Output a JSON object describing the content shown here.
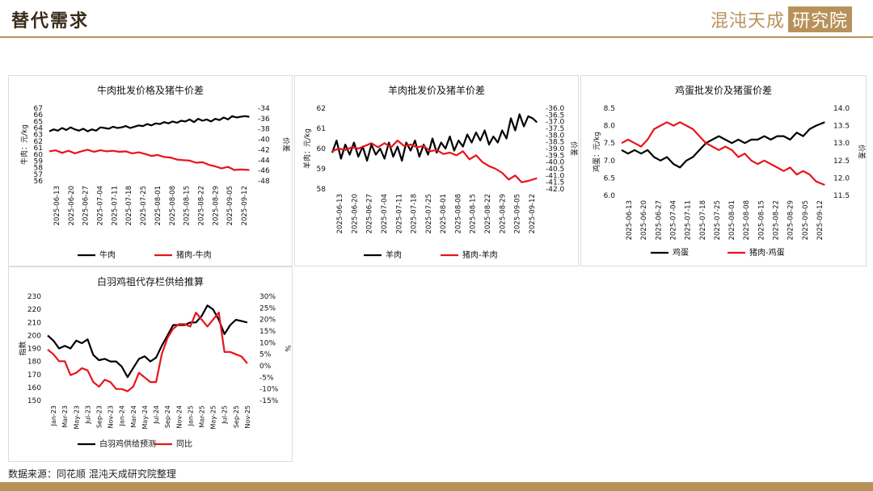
{
  "header": {
    "title": "替代需求",
    "logo_text": "混沌天成",
    "logo_box": "研究院"
  },
  "footer": {
    "source": "数据来源：同花顺 混沌天成研究院整理"
  },
  "colors": {
    "black": "#000000",
    "red": "#e8141b",
    "gold": "#b8915a"
  },
  "chart_data": [
    {
      "type": "line",
      "title": "牛肉批发价格及猪牛价差",
      "ylabel": "牛肉：元/kg",
      "y2label": "价差",
      "ylim": [
        56,
        67
      ],
      "yticks": [
        56,
        57,
        58,
        59,
        60,
        61,
        62,
        63,
        64,
        65,
        66,
        67
      ],
      "y2lim": [
        -48,
        -34
      ],
      "y2ticks": [
        -34,
        -36,
        -38,
        -40,
        -42,
        -44,
        -46,
        -48
      ],
      "xlim": [
        0,
        95
      ],
      "x_tick_labels": [
        "2025-06-13",
        "2025-06-20",
        "2025-06-27",
        "2025-07-04",
        "2025-07-11",
        "2025-07-18",
        "2025-07-25",
        "2025-08-01",
        "2025-08-08",
        "2025-08-15",
        "2025-08-22",
        "2025-08-29",
        "2025-09-05",
        "2025-09-12"
      ],
      "series": [
        {
          "name": "牛肉",
          "color": "#000000",
          "axis": "left",
          "x": [
            0,
            2,
            4,
            6,
            8,
            10,
            12,
            14,
            16,
            18,
            20,
            22,
            24,
            26,
            28,
            30,
            32,
            34,
            36,
            38,
            40,
            42,
            44,
            46,
            48,
            50,
            52,
            54,
            56,
            58,
            60,
            62,
            64,
            66,
            68,
            70,
            72,
            74,
            76,
            78,
            80,
            82,
            84,
            86,
            88,
            90,
            92,
            94
          ],
          "values": [
            63.5,
            63.8,
            63.6,
            64.0,
            63.7,
            64.1,
            63.8,
            63.6,
            63.9,
            63.5,
            63.8,
            63.6,
            64.1,
            64.0,
            63.9,
            64.2,
            64.0,
            64.1,
            64.3,
            64.0,
            64.2,
            64.4,
            64.3,
            64.6,
            64.4,
            64.7,
            64.6,
            64.9,
            64.7,
            65.0,
            64.8,
            65.1,
            65.0,
            65.3,
            64.9,
            65.4,
            65.1,
            65.3,
            65.0,
            65.4,
            65.2,
            65.6,
            65.3,
            65.8,
            65.6,
            65.7,
            65.8,
            65.7
          ]
        },
        {
          "name": "猪肉-牛肉",
          "color": "#e8141b",
          "axis": "right",
          "x": [
            0,
            3,
            6,
            9,
            12,
            15,
            18,
            21,
            24,
            27,
            30,
            33,
            36,
            39,
            42,
            45,
            48,
            51,
            54,
            57,
            60,
            63,
            66,
            69,
            72,
            75,
            78,
            81,
            84,
            87,
            90,
            94
          ],
          "values": [
            -42.3,
            -42.1,
            -42.6,
            -42.2,
            -42.7,
            -42.3,
            -42.0,
            -42.4,
            -42.1,
            -42.3,
            -42.2,
            -42.4,
            -42.3,
            -42.7,
            -42.5,
            -42.8,
            -43.2,
            -43.0,
            -43.4,
            -43.5,
            -43.9,
            -44.0,
            -44.1,
            -44.5,
            -44.4,
            -44.9,
            -45.2,
            -45.6,
            -45.3,
            -45.9,
            -45.8,
            -45.9
          ]
        }
      ]
    },
    {
      "type": "line",
      "title": "羊肉批发价及猪羊价差",
      "ylabel": "羊肉：元/kg",
      "y2label": "价差",
      "ylim": [
        58,
        62
      ],
      "yticks": [
        58,
        59,
        60,
        61,
        62
      ],
      "y2lim": [
        -42,
        -36
      ],
      "y2ticks": [
        -36.0,
        -36.5,
        -37.0,
        -37.5,
        -38.0,
        -38.5,
        -39.0,
        -39.5,
        -40.0,
        -40.5,
        -41.0,
        -41.5,
        -42.0
      ],
      "xlim": [
        0,
        95
      ],
      "x_tick_labels": [
        "2025-06-13",
        "2025-06-20",
        "2025-06-27",
        "2025-07-04",
        "2025-07-11",
        "2025-07-18",
        "2025-07-25",
        "2025-08-01",
        "2025-08-08",
        "2025-08-15",
        "2025-08-22",
        "2025-08-29",
        "2025-09-05",
        "2025-09-12"
      ],
      "series": [
        {
          "name": "羊肉",
          "color": "#000000",
          "axis": "left",
          "x": [
            0,
            2,
            4,
            6,
            8,
            10,
            12,
            14,
            16,
            18,
            20,
            22,
            24,
            26,
            28,
            30,
            32,
            34,
            36,
            38,
            40,
            42,
            44,
            46,
            48,
            50,
            52,
            54,
            56,
            58,
            60,
            62,
            64,
            66,
            68,
            70,
            72,
            74,
            76,
            78,
            80,
            82,
            84,
            86,
            88,
            90,
            92,
            94
          ],
          "values": [
            59.8,
            60.4,
            59.5,
            60.2,
            59.7,
            60.3,
            59.6,
            60.1,
            59.4,
            60.2,
            59.7,
            60.0,
            59.5,
            60.3,
            59.6,
            60.1,
            59.4,
            60.3,
            59.9,
            60.4,
            59.6,
            60.2,
            59.7,
            60.5,
            59.8,
            60.3,
            60.0,
            60.6,
            59.9,
            60.4,
            60.1,
            60.7,
            60.3,
            60.8,
            60.4,
            60.9,
            60.2,
            60.6,
            60.3,
            60.9,
            60.5,
            61.5,
            60.9,
            61.7,
            61.1,
            61.6,
            61.5,
            61.3
          ]
        },
        {
          "name": "猪肉-羊肉",
          "color": "#e8141b",
          "axis": "right",
          "x": [
            0,
            3,
            6,
            9,
            12,
            15,
            18,
            21,
            24,
            27,
            30,
            33,
            36,
            39,
            42,
            45,
            48,
            51,
            54,
            57,
            60,
            63,
            66,
            69,
            72,
            75,
            78,
            81,
            84,
            87,
            90,
            94
          ],
          "values": [
            -39.2,
            -39.0,
            -39.1,
            -38.9,
            -39.0,
            -38.8,
            -38.6,
            -38.9,
            -38.6,
            -38.9,
            -38.4,
            -38.8,
            -38.7,
            -38.9,
            -38.8,
            -39.2,
            -39.1,
            -39.4,
            -39.3,
            -39.5,
            -39.2,
            -39.8,
            -39.5,
            -40.0,
            -40.3,
            -40.5,
            -40.8,
            -41.3,
            -41.0,
            -41.5,
            -41.4,
            -41.2
          ]
        }
      ]
    },
    {
      "type": "line",
      "title": "鸡蛋批发价及猪蛋价差",
      "ylabel": "鸡蛋：元/kg",
      "y2label": "价差",
      "ylim": [
        6.0,
        8.5
      ],
      "yticks": [
        6.0,
        6.5,
        7.0,
        7.5,
        8.0,
        8.5
      ],
      "y2lim": [
        11.5,
        14.0
      ],
      "y2ticks": [
        11.5,
        12.0,
        12.5,
        13.0,
        13.5,
        14.0
      ],
      "xlim": [
        0,
        95
      ],
      "x_tick_labels": [
        "2025-06-13",
        "2025-06-20",
        "2025-06-27",
        "2025-07-04",
        "2025-07-11",
        "2025-07-18",
        "2025-07-25",
        "2025-08-01",
        "2025-08-08",
        "2025-08-15",
        "2025-08-22",
        "2025-08-29",
        "2025-09-05",
        "2025-09-12"
      ],
      "series": [
        {
          "name": "鸡蛋",
          "color": "#000000",
          "axis": "left",
          "x": [
            0,
            3,
            6,
            9,
            12,
            15,
            18,
            21,
            24,
            27,
            30,
            33,
            36,
            39,
            42,
            45,
            48,
            51,
            54,
            57,
            60,
            63,
            66,
            69,
            72,
            75,
            78,
            81,
            84,
            87,
            90,
            94
          ],
          "values": [
            7.3,
            7.2,
            7.3,
            7.2,
            7.3,
            7.1,
            7.0,
            7.1,
            6.9,
            6.8,
            7.0,
            7.1,
            7.3,
            7.5,
            7.6,
            7.7,
            7.6,
            7.5,
            7.6,
            7.5,
            7.6,
            7.6,
            7.7,
            7.6,
            7.7,
            7.7,
            7.6,
            7.8,
            7.7,
            7.9,
            8.0,
            8.1
          ]
        },
        {
          "name": "猪肉-鸡蛋",
          "color": "#e8141b",
          "axis": "right",
          "x": [
            0,
            3,
            6,
            9,
            12,
            15,
            18,
            21,
            24,
            27,
            30,
            33,
            36,
            39,
            42,
            45,
            48,
            51,
            54,
            57,
            60,
            63,
            66,
            69,
            72,
            75,
            78,
            81,
            84,
            87,
            90,
            94
          ],
          "values": [
            13.0,
            13.1,
            13.0,
            12.9,
            13.1,
            13.4,
            13.5,
            13.6,
            13.5,
            13.6,
            13.5,
            13.4,
            13.2,
            13.0,
            12.9,
            12.8,
            12.9,
            12.8,
            12.6,
            12.7,
            12.5,
            12.4,
            12.5,
            12.4,
            12.3,
            12.2,
            12.3,
            12.1,
            12.2,
            12.1,
            11.9,
            11.8
          ]
        }
      ]
    },
    {
      "type": "line",
      "title": "白羽鸡祖代存栏供给推算",
      "ylabel": "指数",
      "y2label": "%",
      "ylim": [
        150,
        230
      ],
      "yticks": [
        150,
        160,
        170,
        180,
        190,
        200,
        210,
        220,
        230
      ],
      "y2lim": [
        -15,
        30
      ],
      "y2ticks": [
        "30%",
        "25%",
        "20%",
        "15%",
        "10%",
        "5%",
        "0%",
        "-5%",
        "-10%",
        "-15%"
      ],
      "y2tick_values": [
        30,
        25,
        20,
        15,
        10,
        5,
        0,
        -5,
        -10,
        -15
      ],
      "xlim": [
        0,
        36
      ],
      "x_tick_labels": [
        "Jan-23",
        "Mar-23",
        "May-23",
        "Jul-23",
        "Sep-23",
        "Nov-23",
        "Jan-24",
        "Mar-24",
        "May-24",
        "Jul-24",
        "Sep-24",
        "Nov-24",
        "Jan-25",
        "Mar-25",
        "May-25",
        "Jul-25",
        "Sep-25",
        "Nov-25"
      ],
      "series": [
        {
          "name": "白羽鸡供给预测",
          "color": "#000000",
          "axis": "left",
          "x": [
            0,
            1,
            2,
            3,
            4,
            5,
            6,
            7,
            8,
            9,
            10,
            11,
            12,
            13,
            14,
            15,
            16,
            17,
            18,
            19,
            20,
            21,
            22,
            23,
            24,
            25,
            26,
            27,
            28,
            29,
            30,
            31,
            32,
            33,
            34,
            35
          ],
          "values": [
            200,
            196,
            190,
            192,
            190,
            196,
            194,
            197,
            185,
            181,
            182,
            180,
            180,
            176,
            168,
            175,
            182,
            184,
            180,
            183,
            192,
            200,
            208,
            208,
            208,
            210,
            210,
            215,
            223,
            220,
            212,
            201,
            208,
            212,
            211,
            210
          ]
        },
        {
          "name": "同比",
          "color": "#e8141b",
          "axis": "right",
          "x": [
            0,
            1,
            2,
            3,
            4,
            5,
            6,
            7,
            8,
            9,
            10,
            11,
            12,
            13,
            14,
            15,
            16,
            17,
            18,
            19,
            20,
            21,
            22,
            23,
            24,
            25,
            26,
            27,
            28,
            29,
            30,
            31,
            32,
            33,
            34,
            35
          ],
          "values": [
            7,
            5,
            2,
            2,
            -4,
            -3,
            -1,
            -2,
            -7,
            -9,
            -6,
            -7,
            -10,
            -10,
            -11,
            -9,
            -3,
            -5,
            -7,
            -7,
            5,
            12,
            16,
            18,
            18,
            17,
            23,
            20,
            17,
            20,
            23,
            6,
            6,
            5,
            4,
            1
          ]
        }
      ]
    }
  ]
}
